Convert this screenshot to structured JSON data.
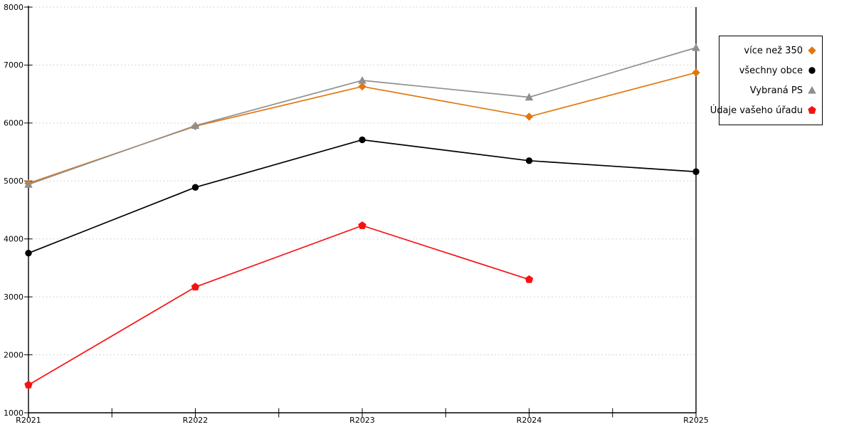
{
  "chart_data": {
    "type": "line",
    "title": "",
    "xlabel": "",
    "ylabel": "",
    "categories": [
      "R2021",
      "R2022",
      "R2023",
      "R2024",
      "R2025"
    ],
    "series": [
      {
        "name": "více než 350",
        "marker": "diamond",
        "color": "#E1770E",
        "values": [
          4960,
          5945,
          6630,
          6110,
          6870
        ]
      },
      {
        "name": "všechny obce",
        "marker": "circle",
        "color": "#000000",
        "values": [
          3755,
          4890,
          5710,
          5350,
          5160
        ]
      },
      {
        "name": "Vybraná PS",
        "marker": "triangle",
        "color": "#8F8F8F",
        "values": [
          4940,
          5955,
          6735,
          6445,
          7300
        ]
      },
      {
        "name": "Údaje vašeho úřadu",
        "marker": "pentagon",
        "color": "#F71111",
        "values": [
          1480,
          3170,
          4230,
          3300,
          null
        ]
      }
    ],
    "ylim": [
      1000,
      8000
    ],
    "ytick_step": 1000,
    "y_tick_labels": [
      "1000",
      "2000",
      "3000",
      "4000",
      "5000",
      "6000",
      "7000",
      "8000"
    ],
    "grid": "dotted-horizontal",
    "legend": {
      "position": "outside-top-right",
      "items": [
        "více než 350",
        "všechny obce",
        "Vybraná PS",
        "Údaje vašeho úřadu"
      ]
    },
    "colors": {
      "gridline": "#C8C8C8",
      "axis": "#000000",
      "background": "#FFFFFF",
      "text": "#000000"
    }
  }
}
